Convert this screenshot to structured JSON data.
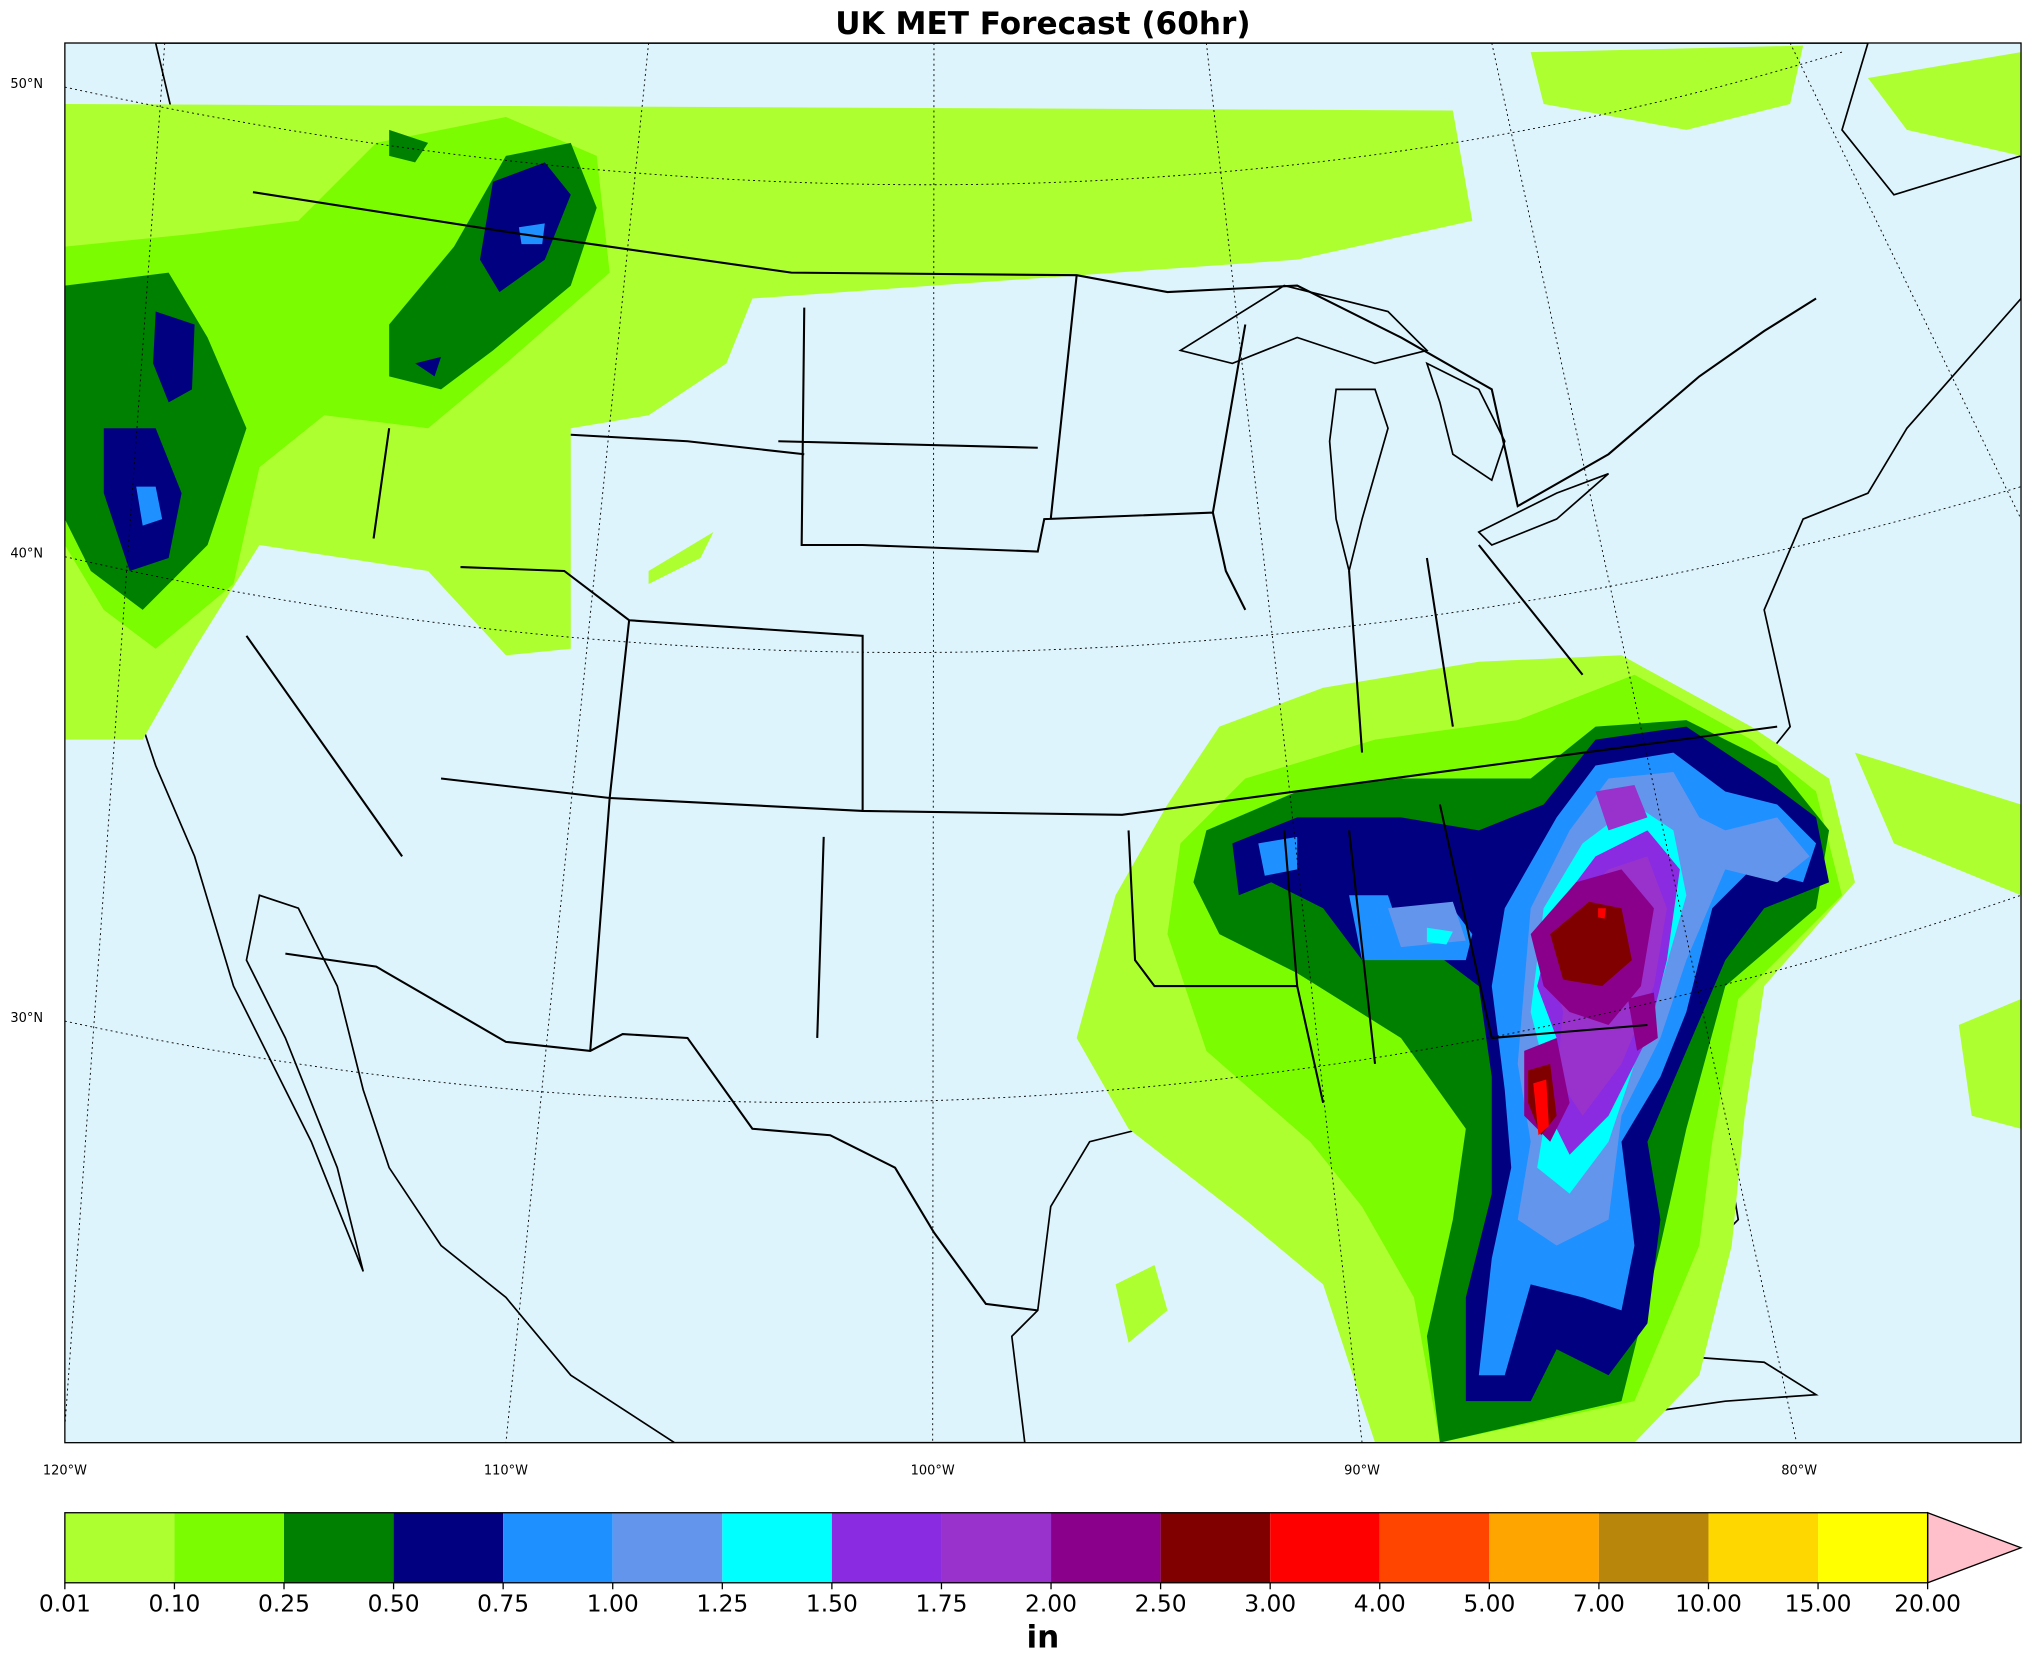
{
  "title": "UK MET Forecast (60hr)",
  "lat_labels": [
    "50°N",
    "40°N",
    "30°N"
  ],
  "lon_labels": [
    "120°W",
    "110°W",
    "100°W",
    "90°W",
    "80°W"
  ],
  "colorbar": {
    "label": "in",
    "levels": [
      {
        "value": 0.01,
        "label": "0.01"
      },
      {
        "value": 0.1,
        "label": "0.10"
      },
      {
        "value": 0.25,
        "label": "0.25"
      },
      {
        "value": 0.5,
        "label": "0.50"
      },
      {
        "value": 0.75,
        "label": "0.75"
      },
      {
        "value": 1,
        "label": "1.00"
      },
      {
        "value": 1.25,
        "label": "1.25"
      },
      {
        "value": 1.5,
        "label": "1.50"
      },
      {
        "value": 1.75,
        "label": "1.75"
      },
      {
        "value": 2,
        "label": "2.00"
      },
      {
        "value": 2.5,
        "label": "2.50"
      },
      {
        "value": 3,
        "label": "3.00"
      },
      {
        "value": 4,
        "label": "4.00"
      },
      {
        "value": 5,
        "label": "5.00"
      },
      {
        "value": 7,
        "label": "7.00"
      },
      {
        "value": 10,
        "label": "10.00"
      },
      {
        "value": 15,
        "label": "15.00"
      },
      {
        "value": 20,
        "label": "20.00"
      }
    ],
    "colors": [
      "#adff2f",
      "#7cfc00",
      "#008000",
      "#000080",
      "#1e90ff",
      "#6495ed",
      "#00ffff",
      "#8a2be2",
      "#9932cc",
      "#8b008b",
      "#800000",
      "#ff0000",
      "#ff4500",
      "#ffa500",
      "#b8860b",
      "#ffd700",
      "#ffff00"
    ],
    "extend_color": "#ffc0cb"
  }
}
